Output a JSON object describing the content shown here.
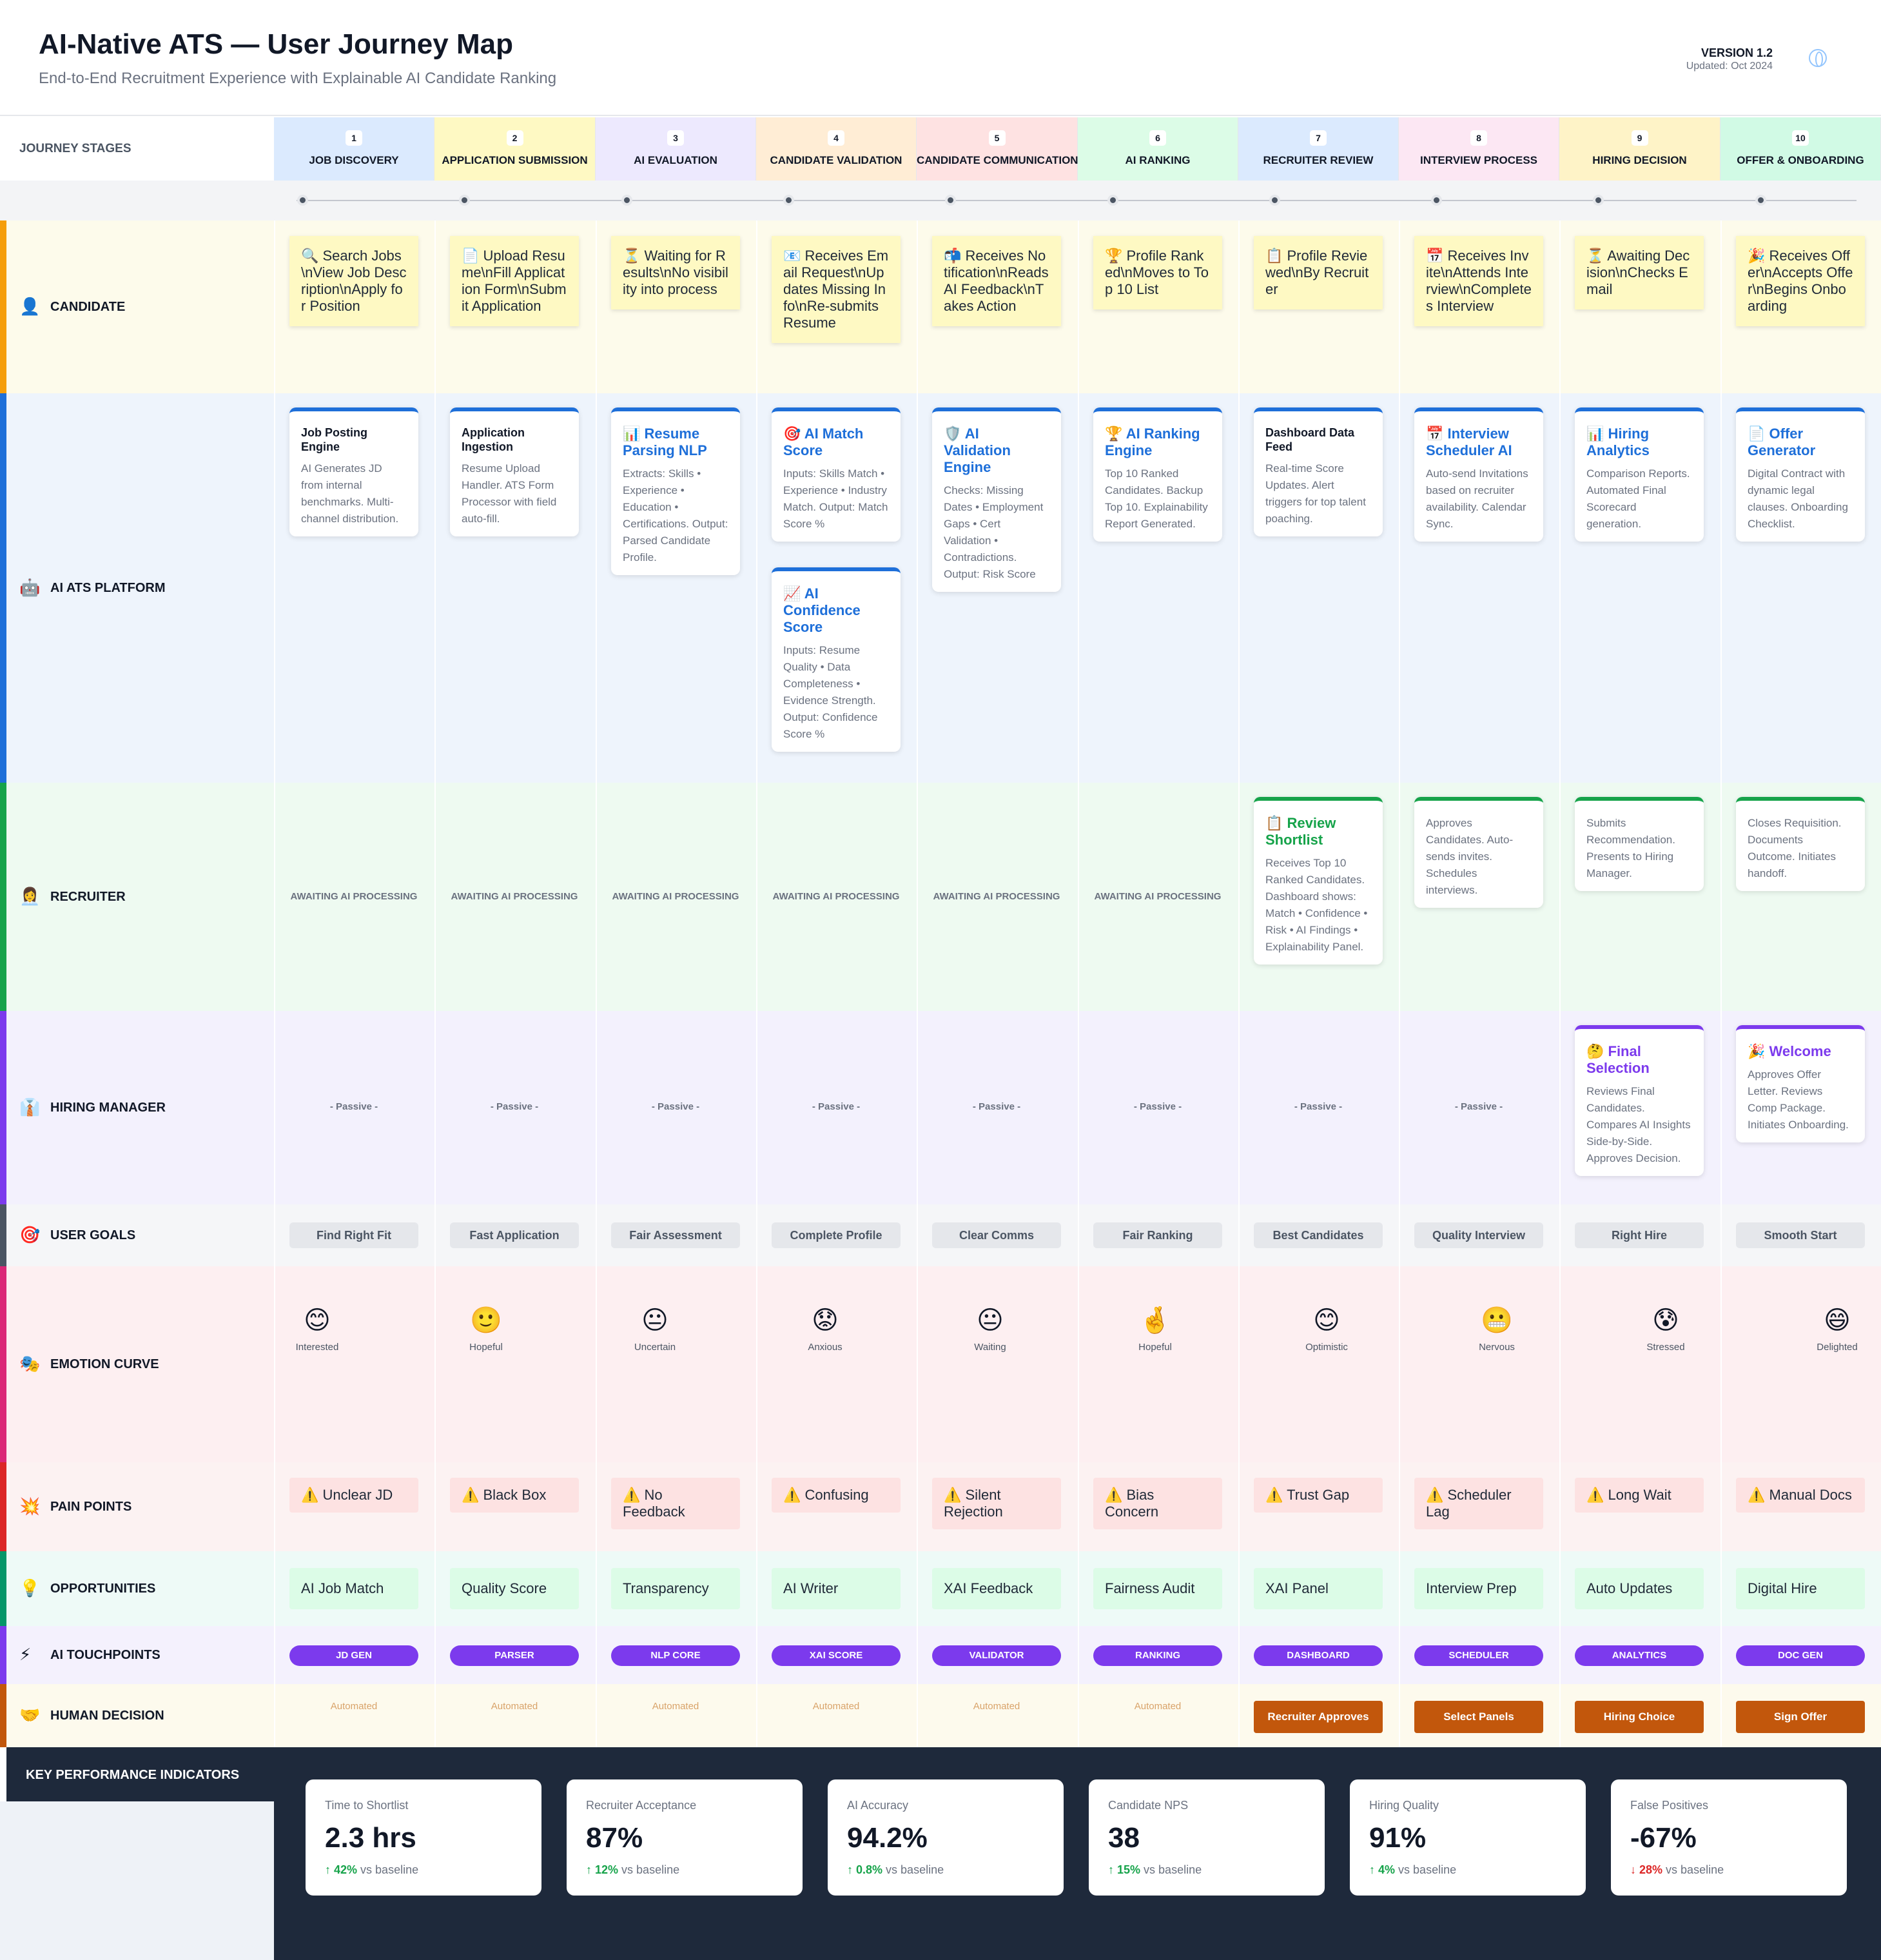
{
  "header": {
    "title": "AI-Native ATS — User Journey Map",
    "subtitle": "End-to-End Recruitment Experience with Explainable AI Candidate Ranking",
    "version": "VERSION 1.2",
    "updated": "Updated: Oct 2024"
  },
  "stages_label": "JOURNEY STAGES",
  "stages": [
    {
      "num": "1",
      "name": "JOB DISCOVERY",
      "color": "#dbeafe"
    },
    {
      "num": "2",
      "name": "APPLICATION SUBMISSION",
      "color": "#fef9c3"
    },
    {
      "num": "3",
      "name": "AI EVALUATION",
      "color": "#ede9fe"
    },
    {
      "num": "4",
      "name": "CANDIDATE VALIDATION",
      "color": "#ffedd5"
    },
    {
      "num": "5",
      "name": "CANDIDATE COMMUNICATION",
      "color": "#fee2e2"
    },
    {
      "num": "6",
      "name": "AI RANKING",
      "color": "#dcfce7"
    },
    {
      "num": "7",
      "name": "RECRUITER REVIEW",
      "color": "#dbeafe"
    },
    {
      "num": "8",
      "name": "INTERVIEW PROCESS",
      "color": "#fce7f3"
    },
    {
      "num": "9",
      "name": "HIRING DECISION",
      "color": "#fef3c7"
    },
    {
      "num": "10",
      "name": "OFFER & ONBOARDING",
      "color": "#d1fae5"
    }
  ],
  "lanes": {
    "candidate": {
      "title": "CANDIDATE",
      "icon": "👤",
      "color": "#f59e0b",
      "bg": "#fdfbeb"
    },
    "platform": {
      "title": "AI ATS PLATFORM",
      "icon": "🤖",
      "color": "#1e6fd9",
      "bg": "#eef4fc"
    },
    "recruiter": {
      "title": "RECRUITER",
      "icon": "👩‍💼",
      "color": "#16a34a",
      "bg": "#eefaf1"
    },
    "manager": {
      "title": "HIRING MANAGER",
      "icon": "👔",
      "color": "#7c3aed",
      "bg": "#f3f1fd"
    },
    "goals": {
      "title": "USER GOALS",
      "icon": "🎯",
      "color": "#4b5563",
      "bg": "#f5f6f8"
    },
    "emotion": {
      "title": "EMOTION CURVE",
      "icon": "🎭",
      "color": "#db2777",
      "bg": "#fdeff1"
    },
    "pain": {
      "title": "PAIN POINTS",
      "icon": "💥",
      "color": "#dc2626",
      "bg": "#fcf2f2"
    },
    "opps": {
      "title": "OPPORTUNITIES",
      "icon": "💡",
      "color": "#059669",
      "bg": "#eefaf7"
    },
    "touch": {
      "title": "AI TOUCHPOINTS",
      "icon": "⚡",
      "color": "#7c3aed",
      "bg": "#f4f1fd"
    },
    "decision": {
      "title": "HUMAN DECISION",
      "icon": "🤝",
      "color": "#c2570c",
      "bg": "#fdfaed"
    }
  },
  "candidate_notes": [
    "🔍 Search Jobs\\nView Job Description\\nApply for Position",
    "📄 Upload Resume\\nFill Application Form\\nSubmit Application",
    "⏳ Waiting for Results\\nNo visibility into process",
    "📧 Receives Email Request\\nUpdates Missing Info\\nRe-submits Resume",
    "📬 Receives Notification\\nReads AI Feedback\\nTakes Action",
    "🏆 Profile Ranked\\nMoves to Top 10 List",
    "📋 Profile Reviewed\\nBy Recruiter",
    "📅 Receives Invite\\nAttends Interview\\nCompletes Interview",
    "⏳ Awaiting Decision\\nChecks Email",
    "🎉 Receives Offer\\nAccepts Offer\\nBegins Onboarding"
  ],
  "platform_cards": [
    [
      {
        "title": "Job Posting Engine",
        "style": "plain",
        "body": "AI Generates JD from internal benchmarks. Multi-channel distribution."
      }
    ],
    [
      {
        "title": "Application Ingestion",
        "style": "plain",
        "body": "Resume Upload Handler. ATS Form Processor with field auto-fill."
      }
    ],
    [
      {
        "title": "📊 Resume Parsing NLP",
        "style": "blue",
        "body": "Extracts: Skills • Experience • Education • Certifications. Output: Parsed Candidate Profile."
      }
    ],
    [
      {
        "title": "🎯 AI Match Score",
        "style": "blue",
        "body": "Inputs: Skills Match • Experience • Industry Match. Output: Match Score %"
      },
      {
        "title": "📈 AI Confidence Score",
        "style": "blue",
        "body": "Inputs: Resume Quality • Data Completeness • Evidence Strength. Output: Confidence Score %"
      }
    ],
    [
      {
        "title": "🛡️ AI Validation Engine",
        "style": "blue",
        "body": "Checks: Missing Dates • Employment Gaps • Cert Validation • Contradictions. Output: Risk Score"
      }
    ],
    [
      {
        "title": "🏆 AI Ranking Engine",
        "style": "blue",
        "body": "Top 10 Ranked Candidates. Backup Top 10. Explainability Report Generated."
      }
    ],
    [
      {
        "title": "Dashboard Data Feed",
        "style": "plain",
        "body": "Real-time Score Updates. Alert triggers for top talent poaching."
      }
    ],
    [
      {
        "title": "📅 Interview Scheduler AI",
        "style": "blue",
        "body": "Auto-send Invitations based on recruiter availability. Calendar Sync."
      }
    ],
    [
      {
        "title": "📊 Hiring Analytics",
        "style": "blue",
        "body": "Comparison Reports. Automated Final Scorecard generation."
      }
    ],
    [
      {
        "title": "📄 Offer Generator",
        "style": "blue",
        "body": "Digital Contract with dynamic legal clauses. Onboarding Checklist."
      }
    ]
  ],
  "recruiter_awaiting": "AWAITING AI PROCESSING",
  "recruiter_cards": [
    {
      "col": 6,
      "title": "📋 Review Shortlist",
      "body": "Receives Top 10 Ranked Candidates. Dashboard shows: Match • Confidence • Risk • AI Findings • Explainability Panel."
    },
    {
      "col": 7,
      "title": "",
      "body": "Approves Candidates. Auto-sends invites. Schedules interviews."
    },
    {
      "col": 8,
      "title": "",
      "body": "Submits Recommendation. Presents to Hiring Manager."
    },
    {
      "col": 9,
      "title": "",
      "body": "Closes Requisition. Documents Outcome. Initiates handoff."
    }
  ],
  "manager_passive": "- Passive -",
  "manager_cards": [
    {
      "col": 8,
      "title": "🤔 Final Selection",
      "body": "Reviews Final Candidates. Compares AI Insights Side-by-Side. Approves Decision."
    },
    {
      "col": 9,
      "title": "🎉 Welcome",
      "body": "Approves Offer Letter. Reviews Comp Package. Initiates Onboarding."
    }
  ],
  "goals": [
    "Find Right Fit",
    "Fast Application",
    "Fair Assessment",
    "Complete Profile",
    "Clear Comms",
    "Fair Ranking",
    "Best Candidates",
    "Quality Interview",
    "Right Hire",
    "Smooth Start"
  ],
  "emotions": [
    {
      "face": "😊",
      "label": "Interested",
      "level": 0.7
    },
    {
      "face": "🙂",
      "label": "Hopeful",
      "level": 0.7
    },
    {
      "face": "😐",
      "label": "Uncertain",
      "level": 0.7
    },
    {
      "face": "😟",
      "label": "Anxious",
      "level": 0.7
    },
    {
      "face": "😐",
      "label": "Waiting",
      "level": 0.7
    },
    {
      "face": "🤞",
      "label": "Hopeful",
      "level": 0.7
    },
    {
      "face": "😊",
      "label": "Optimistic",
      "level": 0.7
    },
    {
      "face": "😬",
      "label": "Nervous",
      "level": 0.7
    },
    {
      "face": "😰",
      "label": "Stressed",
      "level": 0.7
    },
    {
      "face": "😄",
      "label": "Delighted",
      "level": 0.7
    }
  ],
  "pain_points": [
    "⚠️ Unclear JD",
    "⚠️ Black Box",
    "⚠️ No Feedback",
    "⚠️ Confusing",
    "⚠️ Silent Rejection",
    "⚠️ Bias Concern",
    "⚠️ Trust Gap",
    "⚠️ Scheduler Lag",
    "⚠️ Long Wait",
    "⚠️ Manual Docs"
  ],
  "opportunities": [
    "AI Job Match",
    "Quality Score",
    "Transparency",
    "AI Writer",
    "XAI Feedback",
    "Fairness Audit",
    "XAI Panel",
    "Interview Prep",
    "Auto Updates",
    "Digital Hire"
  ],
  "touchpoints": [
    "JD GEN",
    "PARSER",
    "NLP CORE",
    "XAI SCORE",
    "VALIDATOR",
    "RANKING",
    "DASHBOARD",
    "SCHEDULER",
    "ANALYTICS",
    "DOC GEN"
  ],
  "decisions": [
    {
      "type": "auto",
      "label": "Automated"
    },
    {
      "type": "auto",
      "label": "Automated"
    },
    {
      "type": "auto",
      "label": "Automated"
    },
    {
      "type": "auto",
      "label": "Automated"
    },
    {
      "type": "auto",
      "label": "Automated"
    },
    {
      "type": "auto",
      "label": "Automated"
    },
    {
      "type": "human",
      "label": "Recruiter Approves"
    },
    {
      "type": "human",
      "label": "Select Panels"
    },
    {
      "type": "human",
      "label": "Hiring Choice"
    },
    {
      "type": "human",
      "label": "Sign Offer"
    }
  ],
  "kpi_title": "KEY PERFORMANCE INDICATORS",
  "kpis": [
    {
      "label": "Time to Shortlist",
      "value": "2.3 hrs",
      "trend": "↑ 42%",
      "dir": "up",
      "note": "vs baseline"
    },
    {
      "label": "Recruiter Acceptance",
      "value": "87%",
      "trend": "↑ 12%",
      "dir": "up",
      "note": "vs baseline"
    },
    {
      "label": "AI Accuracy",
      "value": "94.2%",
      "trend": "↑ 0.8%",
      "dir": "up",
      "note": "vs baseline"
    },
    {
      "label": "Candidate NPS",
      "value": "38",
      "trend": "↑ 15%",
      "dir": "up",
      "note": "vs baseline"
    },
    {
      "label": "Hiring Quality",
      "value": "91%",
      "trend": "↑ 4%",
      "dir": "up",
      "note": "vs baseline"
    },
    {
      "label": "False Positives",
      "value": "-67%",
      "trend": "↓ 28%",
      "dir": "down",
      "note": "vs baseline"
    }
  ]
}
